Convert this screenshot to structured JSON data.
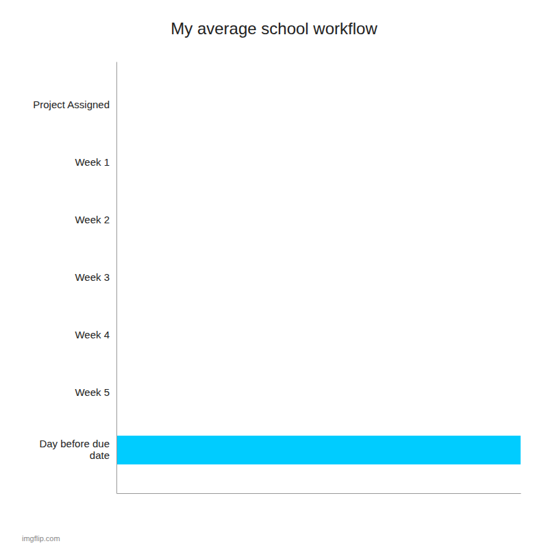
{
  "chart_data": {
    "type": "bar",
    "orientation": "horizontal",
    "title": "My average school workflow",
    "categories": [
      "Project Assigned",
      "Week 1",
      "Week 2",
      "Week 3",
      "Week 4",
      "Week 5",
      "Day before due\ndate"
    ],
    "values": [
      0,
      0,
      0,
      0,
      0,
      0,
      100
    ],
    "color": "#00ccff",
    "xlim": [
      0,
      100
    ],
    "tick_labels": "y",
    "grid": false,
    "annotations": [
      "imgflip.com"
    ]
  }
}
